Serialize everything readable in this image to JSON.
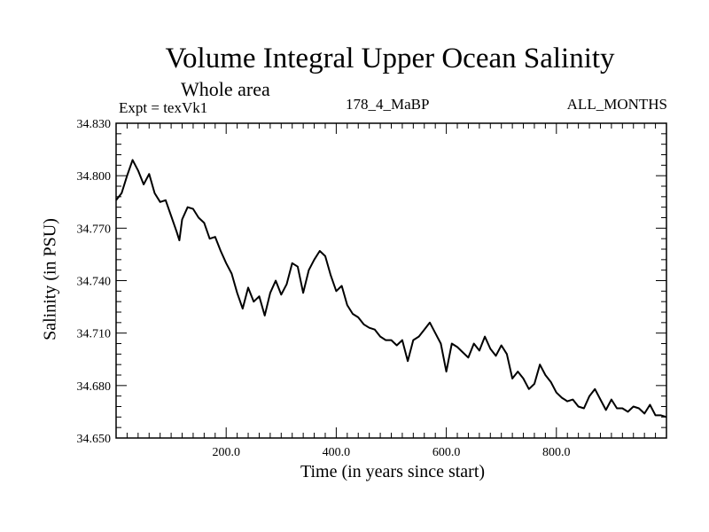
{
  "chart_data": {
    "type": "line",
    "title": "Volume Integral Upper Ocean Salinity",
    "subtitle": "Whole area",
    "experiment": "Expt = texVk1",
    "experiment_code": "178_4_MaBP",
    "period": "ALL_MONTHS",
    "xlabel": "Time (in years since start)",
    "ylabel": "Salinity (in PSU)",
    "xlim": [
      0,
      1000
    ],
    "ylim": [
      34.65,
      34.83
    ],
    "grid": false,
    "x_ticks": [
      200,
      400,
      600,
      800
    ],
    "x_tick_labels": [
      "200.0",
      "400.0",
      "600.0",
      "800.0"
    ],
    "y_ticks": [
      34.65,
      34.68,
      34.71,
      34.74,
      34.77,
      34.8,
      34.83
    ],
    "y_tick_labels": [
      "34.650",
      "34.680",
      "34.710",
      "34.740",
      "34.770",
      "34.800",
      "34.830"
    ],
    "series": [
      {
        "name": "Salinity",
        "color": "#000000",
        "x": [
          0,
          10,
          20,
          30,
          40,
          50,
          60,
          70,
          80,
          90,
          100,
          110,
          115,
          120,
          130,
          140,
          150,
          160,
          170,
          180,
          190,
          200,
          210,
          220,
          230,
          240,
          250,
          260,
          270,
          280,
          290,
          300,
          310,
          320,
          330,
          340,
          350,
          360,
          370,
          380,
          390,
          400,
          410,
          420,
          430,
          440,
          450,
          460,
          470,
          480,
          490,
          500,
          510,
          520,
          530,
          540,
          550,
          560,
          570,
          580,
          590,
          600,
          610,
          620,
          630,
          640,
          650,
          660,
          670,
          680,
          690,
          700,
          710,
          720,
          730,
          740,
          750,
          760,
          770,
          780,
          790,
          800,
          810,
          820,
          830,
          840,
          850,
          860,
          870,
          880,
          890,
          900,
          910,
          920,
          930,
          940,
          950,
          960,
          970,
          980,
          990,
          1000
        ],
        "values": [
          34.786,
          34.79,
          34.8,
          34.809,
          34.803,
          34.795,
          34.801,
          34.79,
          34.785,
          34.786,
          34.777,
          34.768,
          34.763,
          34.775,
          34.782,
          34.781,
          34.776,
          34.773,
          34.764,
          34.765,
          34.757,
          34.75,
          34.744,
          34.733,
          34.724,
          34.736,
          34.728,
          34.731,
          34.72,
          34.733,
          34.74,
          34.732,
          34.738,
          34.75,
          34.748,
          34.733,
          34.746,
          34.752,
          34.757,
          34.754,
          34.743,
          34.734,
          34.737,
          34.726,
          34.721,
          34.719,
          34.715,
          34.713,
          34.712,
          34.708,
          34.706,
          34.706,
          34.703,
          34.706,
          34.694,
          34.706,
          34.708,
          34.712,
          34.716,
          34.71,
          34.704,
          34.688,
          34.704,
          34.702,
          34.699,
          34.696,
          34.704,
          34.7,
          34.708,
          34.701,
          34.697,
          34.703,
          34.698,
          34.684,
          34.688,
          34.684,
          34.678,
          34.681,
          34.692,
          34.686,
          34.682,
          34.676,
          34.673,
          34.671,
          34.672,
          34.668,
          34.667,
          34.674,
          34.678,
          34.672,
          34.666,
          34.672,
          34.667,
          34.667,
          34.665,
          34.668,
          34.667,
          34.664,
          34.669,
          34.663,
          34.663,
          34.662
        ]
      }
    ]
  }
}
